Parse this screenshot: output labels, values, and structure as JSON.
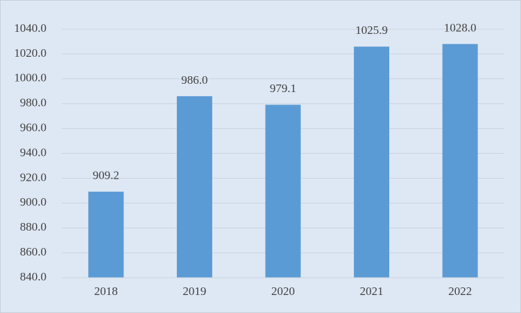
{
  "chart_data": {
    "type": "bar",
    "categories": [
      "2018",
      "2019",
      "2020",
      "2021",
      "2022"
    ],
    "values": [
      909.2,
      986.0,
      979.1,
      1025.9,
      1028.0
    ],
    "value_labels": [
      "909.2",
      "986.0",
      "979.1",
      "1025.9",
      "1028.0"
    ],
    "color": "#5b9bd5",
    "ylim": [
      840,
      1040
    ],
    "yticks": [
      {
        "value": 840,
        "label": "840.0"
      },
      {
        "value": 860,
        "label": "860.0"
      },
      {
        "value": 880,
        "label": "880.0"
      },
      {
        "value": 900,
        "label": "900.0"
      },
      {
        "value": 920,
        "label": "920.0"
      },
      {
        "value": 940,
        "label": "940.0"
      },
      {
        "value": 960,
        "label": "960.0"
      },
      {
        "value": 980,
        "label": "980.0"
      },
      {
        "value": 1000,
        "label": "1000.0"
      },
      {
        "value": 1020,
        "label": "1020.0"
      },
      {
        "value": 1040,
        "label": "1040.0"
      }
    ],
    "grid": true
  }
}
